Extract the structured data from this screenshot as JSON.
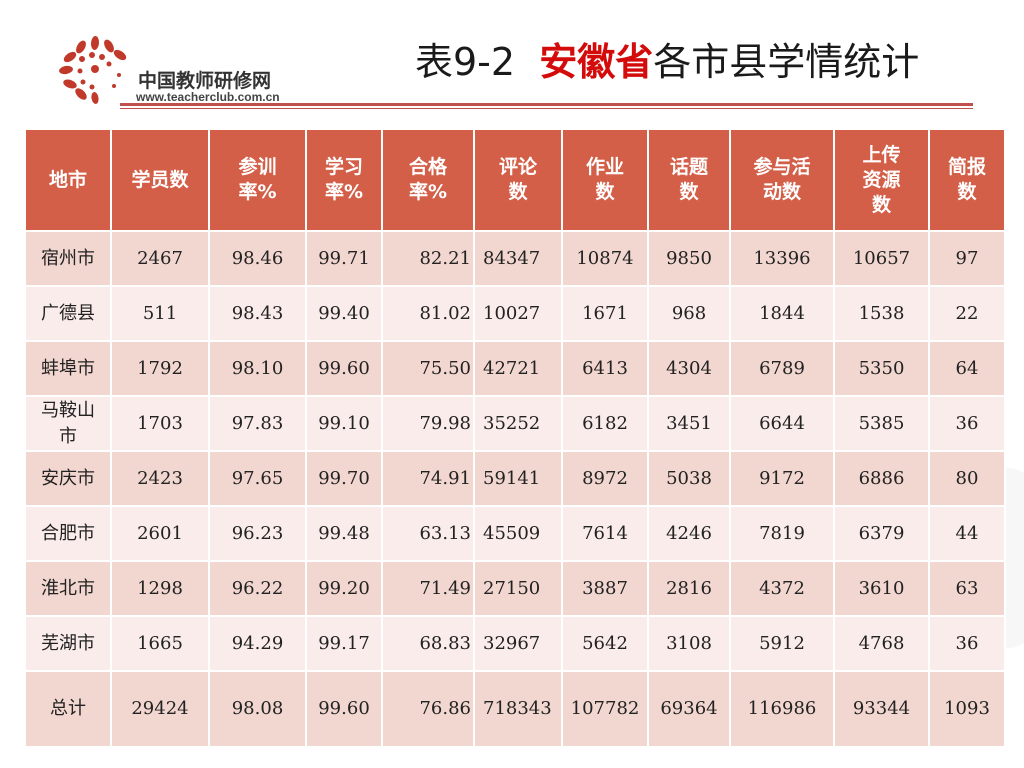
{
  "header": {
    "logo_cn": "中国教师研修网",
    "logo_url": "www.teacherclub.com.cn",
    "title_prefix": "表9-2  ",
    "title_highlight": "安徽省",
    "title_suffix": "各市县学情统计"
  },
  "colors": {
    "header_bg": "#d35f48",
    "row_odd": "#f2d6d0",
    "row_even": "#f9ecea",
    "title_highlight": "#d40b0b",
    "rule": "#c0504d"
  },
  "icons": {
    "logo": "teacherclub-dots-logo"
  },
  "table": {
    "columns": [
      "地市",
      "学员数",
      "参训\n率%",
      "学习\n率%",
      "合格\n率%",
      "评论\n数",
      "作业\n数",
      "话题\n数",
      "参与活\n动数",
      "上传\n资源\n数",
      "简报\n数"
    ],
    "rows": [
      [
        "宿州市",
        "2467",
        "98.46",
        "99.71",
        "82.21",
        "84347",
        "10874",
        "9850",
        "13396",
        "10657",
        "97"
      ],
      [
        "广德县",
        "511",
        "98.43",
        "99.40",
        "81.02",
        "10027",
        "1671",
        "968",
        "1844",
        "1538",
        "22"
      ],
      [
        "蚌埠市",
        "1792",
        "98.10",
        "99.60",
        "75.50",
        "42721",
        "6413",
        "4304",
        "6789",
        "5350",
        "64"
      ],
      [
        "马鞍山\n市",
        "1703",
        "97.83",
        "99.10",
        "79.98",
        "35252",
        "6182",
        "3451",
        "6644",
        "5385",
        "36"
      ],
      [
        "安庆市",
        "2423",
        "97.65",
        "99.70",
        "74.91",
        "59141",
        "8972",
        "5038",
        "9172",
        "6886",
        "80"
      ],
      [
        "合肥市",
        "2601",
        "96.23",
        "99.48",
        "63.13",
        "45509",
        "7614",
        "4246",
        "7819",
        "6379",
        "44"
      ],
      [
        "淮北市",
        "1298",
        "96.22",
        "99.20",
        "71.49",
        "27150",
        "3887",
        "2816",
        "4372",
        "3610",
        "63"
      ],
      [
        "芜湖市",
        "1665",
        "94.29",
        "99.17",
        "68.83",
        "32967",
        "5642",
        "3108",
        "5912",
        "4768",
        "36"
      ]
    ],
    "total": [
      "总计",
      "29424",
      "98.08",
      "99.60",
      "76.86",
      "718343",
      "107782",
      "69364",
      "116986",
      "93344",
      "1093"
    ]
  }
}
